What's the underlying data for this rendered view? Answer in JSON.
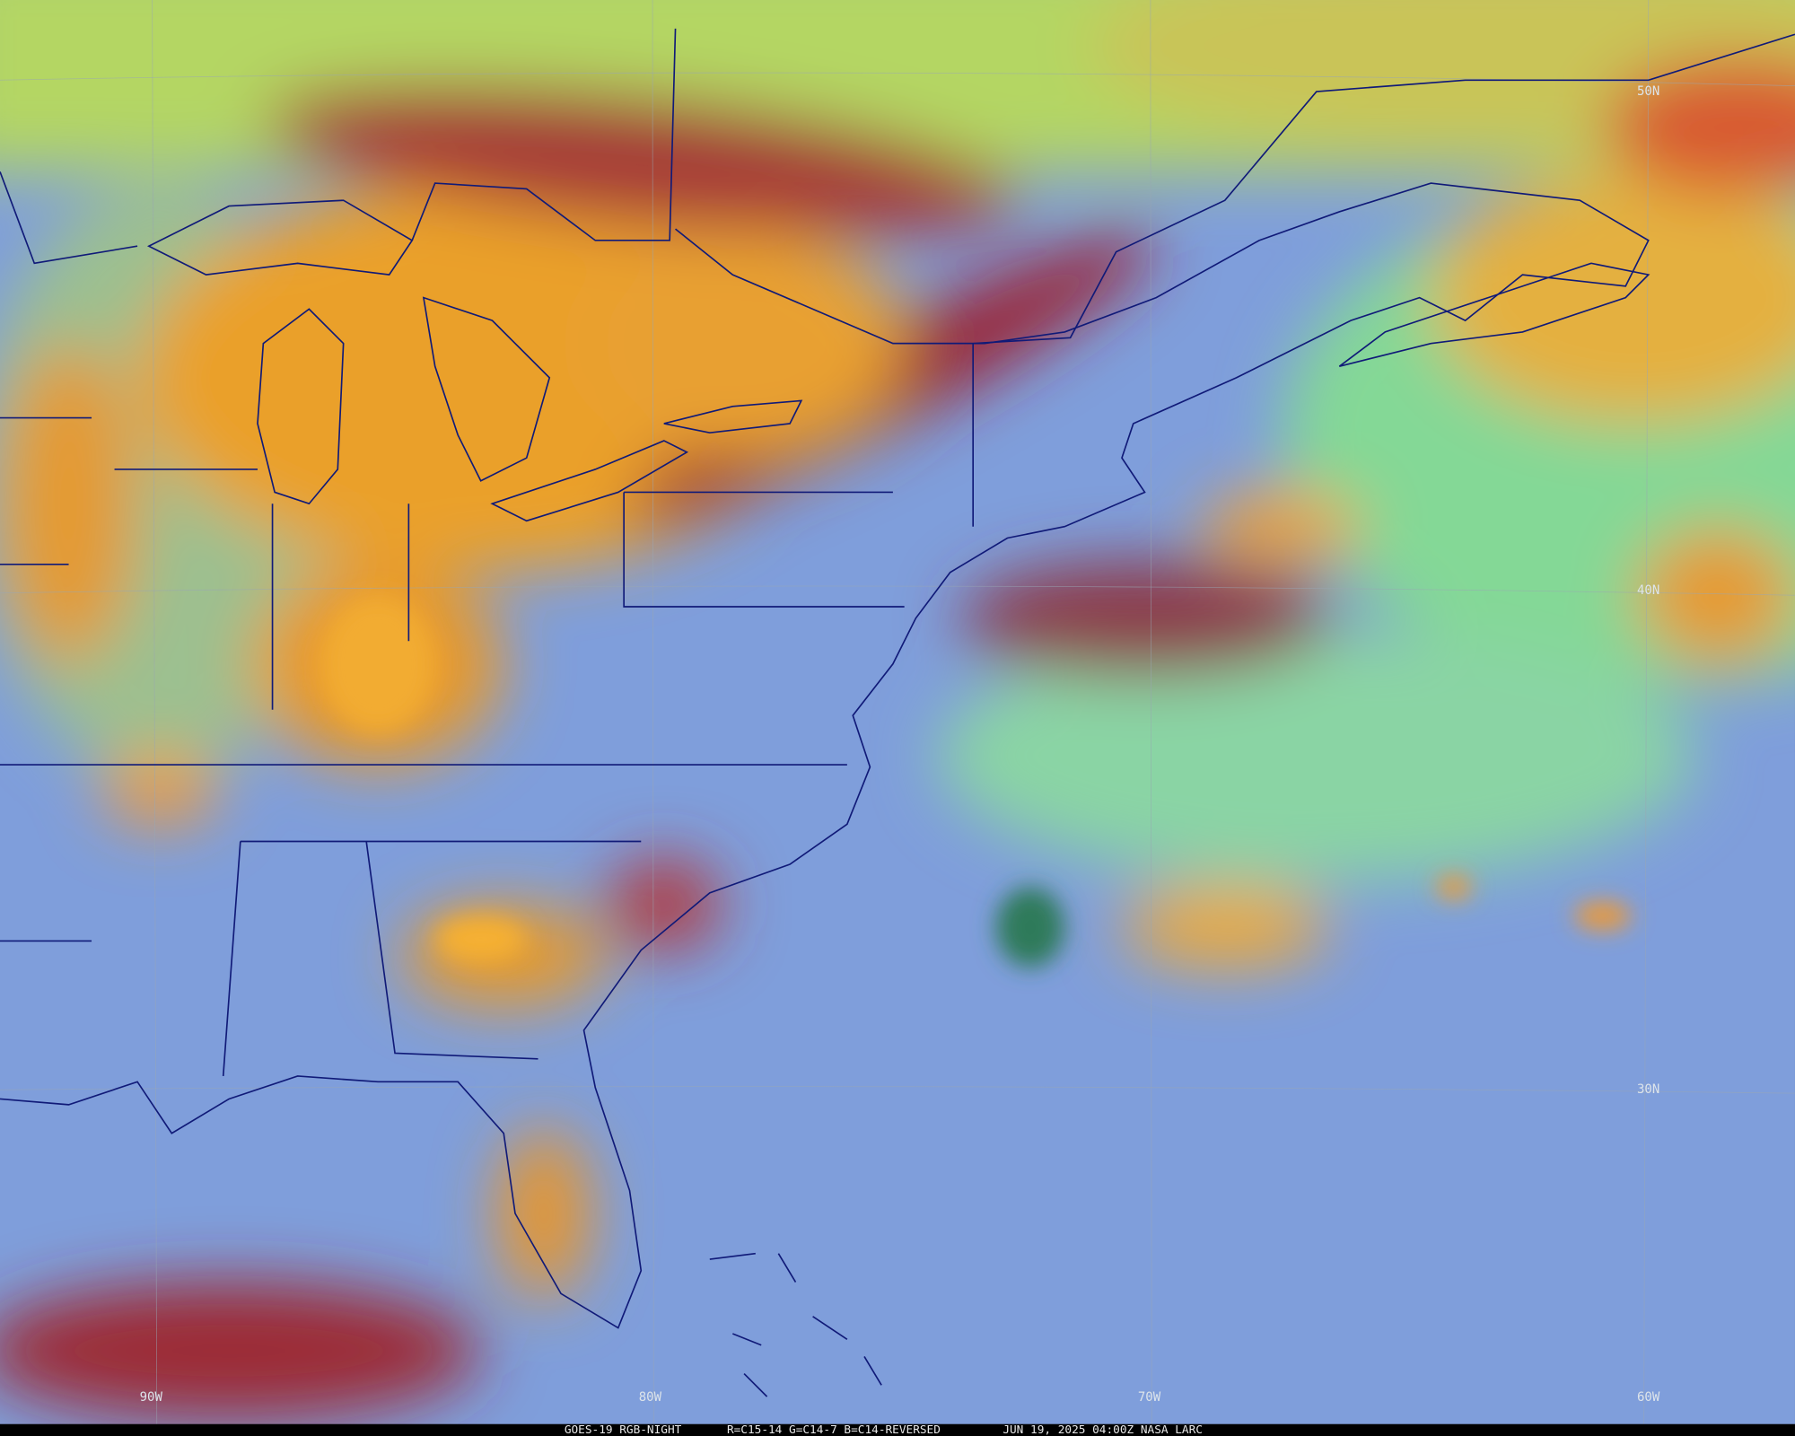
{
  "map": {
    "longitude_labels": [
      "90W",
      "80W",
      "70W",
      "60W"
    ],
    "latitude_labels": [
      "50N",
      "40N",
      "30N"
    ],
    "footer": [
      "GOES-19 RGB-NIGHT",
      "R=C15-14 G=C14-7 B=C14-REVERSED",
      "JUN 19, 2025 04:00Z NASA LARC"
    ]
  }
}
